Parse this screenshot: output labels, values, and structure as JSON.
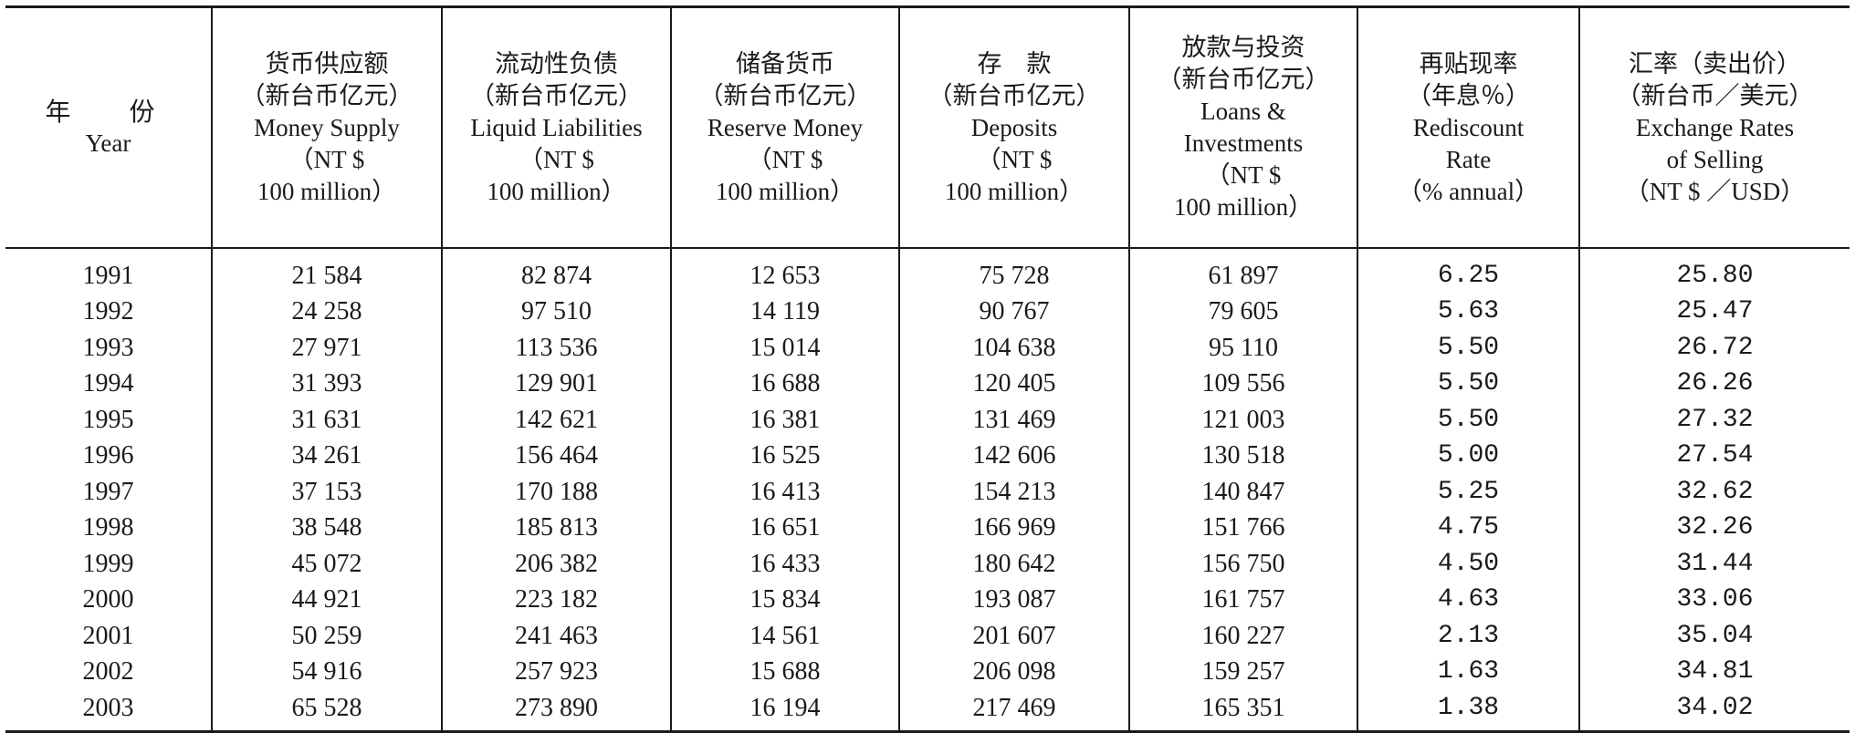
{
  "table": {
    "headers": [
      {
        "lines_cn": [
          "年　份"
        ],
        "lines_en": [
          "Year"
        ]
      },
      {
        "lines_cn": [
          "货币供应额",
          "（新台币亿元）"
        ],
        "lines_en": [
          "Money Supply",
          "（NT $",
          "100 million）"
        ]
      },
      {
        "lines_cn": [
          "流动性负债",
          "（新台币亿元）"
        ],
        "lines_en": [
          "Liquid Liabilities",
          "（NT $",
          "100 million）"
        ]
      },
      {
        "lines_cn": [
          "储备货币",
          "（新台币亿元）"
        ],
        "lines_en": [
          "Reserve Money",
          "（NT $",
          "100 million）"
        ]
      },
      {
        "lines_cn": [
          "存　款",
          "（新台币亿元）"
        ],
        "lines_en": [
          "Deposits",
          "（NT $",
          "100 million）"
        ]
      },
      {
        "lines_cn": [
          "放款与投资",
          "（新台币亿元）"
        ],
        "lines_en": [
          "Loans &",
          "Investments",
          "（NT $",
          "100 million）"
        ]
      },
      {
        "lines_cn": [
          "再贴现率",
          "（年息％）"
        ],
        "lines_en": [
          "Rediscount",
          "Rate",
          "（% annual）"
        ]
      },
      {
        "lines_cn": [
          "汇率（卖出价）",
          "（新台币／美元）"
        ],
        "lines_en": [
          "Exchange Rates",
          "of Selling",
          "（NT $ ／USD）"
        ]
      }
    ],
    "rows": [
      [
        "1991",
        "21 584",
        "82 874",
        "12 653",
        "75 728",
        "61 897",
        "6.25",
        "25.80"
      ],
      [
        "1992",
        "24 258",
        "97 510",
        "14 119",
        "90 767",
        "79 605",
        "5.63",
        "25.47"
      ],
      [
        "1993",
        "27 971",
        "113 536",
        "15 014",
        "104 638",
        "95 110",
        "5.50",
        "26.72"
      ],
      [
        "1994",
        "31 393",
        "129 901",
        "16 688",
        "120 405",
        "109 556",
        "5.50",
        "26.26"
      ],
      [
        "1995",
        "31 631",
        "142 621",
        "16 381",
        "131 469",
        "121 003",
        "5.50",
        "27.32"
      ],
      [
        "1996",
        "34 261",
        "156 464",
        "16 525",
        "142 606",
        "130 518",
        "5.00",
        "27.54"
      ],
      [
        "1997",
        "37 153",
        "170 188",
        "16 413",
        "154 213",
        "140 847",
        "5.25",
        "32.62"
      ],
      [
        "1998",
        "38 548",
        "185 813",
        "16 651",
        "166 969",
        "151 766",
        "4.75",
        "32.26"
      ],
      [
        "1999",
        "45 072",
        "206 382",
        "16 433",
        "180 642",
        "156 750",
        "4.50",
        "31.44"
      ],
      [
        "2000",
        "44 921",
        "223 182",
        "15 834",
        "193 087",
        "161 757",
        "4.63",
        "33.06"
      ],
      [
        "2001",
        "50 259",
        "241 463",
        "14 561",
        "201 607",
        "160 227",
        "2.13",
        "35.04"
      ],
      [
        "2002",
        "54 916",
        "257 923",
        "15 688",
        "206 098",
        "159 257",
        "1.63",
        "34.81"
      ],
      [
        "2003",
        "65 528",
        "273 890",
        "16 194",
        "217 469",
        "165 351",
        "1.38",
        "34.02"
      ]
    ]
  }
}
